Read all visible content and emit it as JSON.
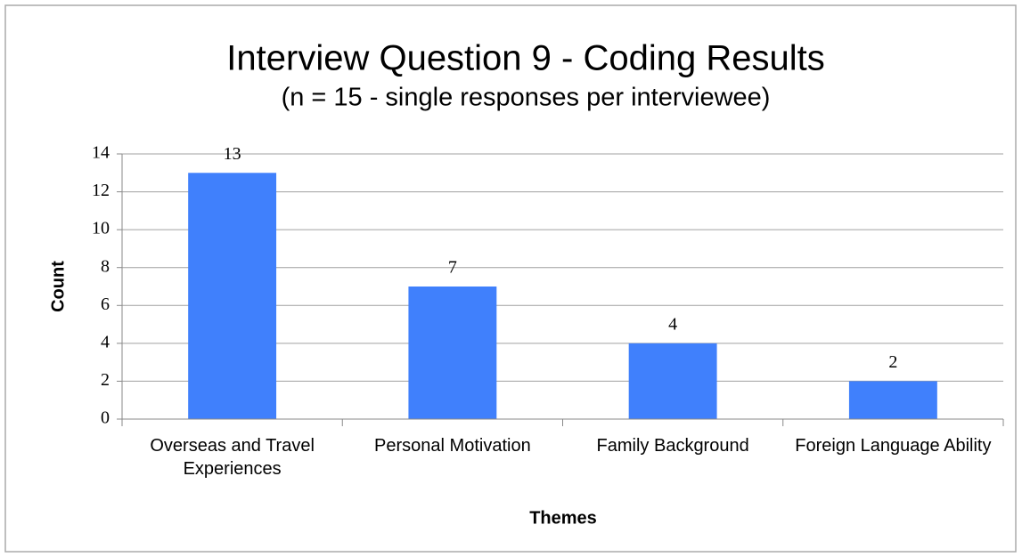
{
  "chart_data": {
    "type": "bar",
    "title": "Interview Question 9 - Coding Results",
    "subtitle": "(n = 15 - single responses per interviewee)",
    "y_label": "Count",
    "x_label": "Themes",
    "categories": [
      "Overseas and Travel Experiences",
      "Personal Motivation",
      "Family Background",
      "Foreign Language Ability"
    ],
    "values": [
      13,
      7,
      4,
      2
    ],
    "color": "#4080fc",
    "ylim": [
      0,
      14
    ],
    "yticks": [
      0,
      2,
      4,
      6,
      8,
      10,
      12,
      14
    ],
    "grid": true
  }
}
